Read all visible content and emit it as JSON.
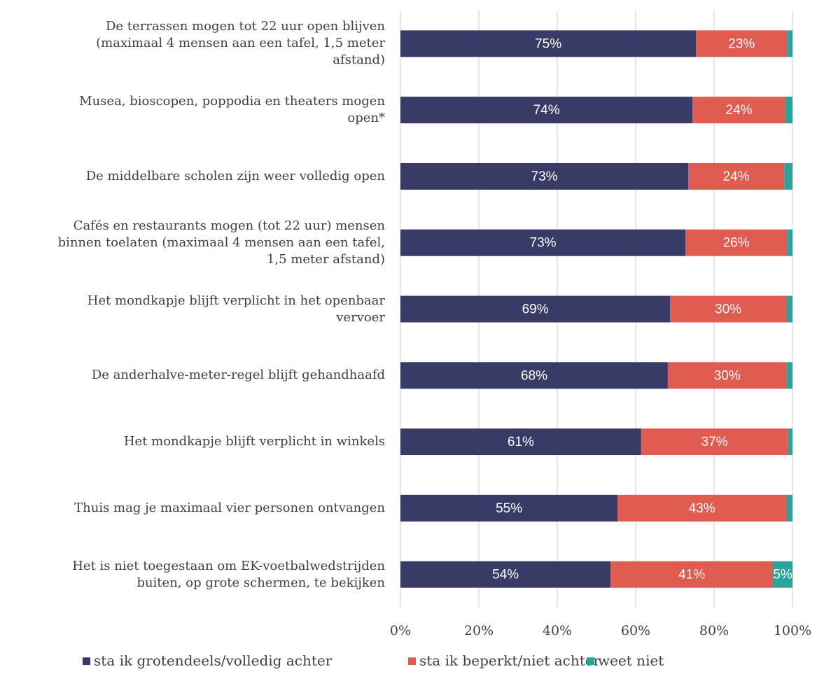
{
  "chart_data": {
    "type": "stacked-bar-horizontal",
    "categories": [
      "De terrassen mogen tot 22 uur open blijven\n(maximaal 4 mensen aan een tafel, 1,5 meter\nafstand)",
      "Musea, bioscopen, poppodia en theaters mogen\nopen*",
      "De middelbare scholen zijn weer volledig open",
      "Cafés en restaurants mogen (tot 22 uur) mensen\nbinnen toelaten (maximaal 4 mensen aan een tafel,\n1,5 meter afstand)",
      "Het mondkapje blijft verplicht in het openbaar\nvervoer",
      "De anderhalve-meter-regel blijft gehandhaafd",
      "Het mondkapje blijft verplicht in winkels",
      "Thuis mag je maximaal vier personen ontvangen",
      "Het is niet toegestaan om EK-voetbalwedstrijden\nbuiten, op grote schermen, te bekijken"
    ],
    "series": [
      {
        "name": "sta ik grotendeels/volledig achter",
        "color": "#383b66",
        "values": [
          75.4,
          74.5,
          73.4,
          72.7,
          68.8,
          68.2,
          61.4,
          55.4,
          53.6
        ],
        "value_labels": [
          "75%",
          "74%",
          "73%",
          "73%",
          "69%",
          "68%",
          "61%",
          "55%",
          "54%"
        ]
      },
      {
        "name": "sta ik beperkt/niet achter",
        "color": "#e05b50",
        "values": [
          23.2,
          23.7,
          24.5,
          25.9,
          29.6,
          30.3,
          37.4,
          43.0,
          41.4
        ],
        "value_labels": [
          "23%",
          "24%",
          "24%",
          "26%",
          "30%",
          "30%",
          "37%",
          "43%",
          "41%"
        ]
      },
      {
        "name": "weet niet",
        "color": "#2aa39a",
        "values": [
          1.4,
          1.8,
          2.1,
          1.4,
          1.6,
          1.5,
          1.2,
          1.6,
          5.0
        ],
        "value_labels": [
          null,
          null,
          null,
          null,
          null,
          null,
          null,
          null,
          "5%"
        ]
      }
    ],
    "xlim": [
      0,
      100
    ],
    "xticks": [
      {
        "value": 0,
        "label": "0%"
      },
      {
        "value": 20,
        "label": "20%"
      },
      {
        "value": 40,
        "label": "40%"
      },
      {
        "value": 60,
        "label": "60%"
      },
      {
        "value": 80,
        "label": "80%"
      },
      {
        "value": 100,
        "label": "100%"
      }
    ],
    "grid": true,
    "legend": "bottom"
  }
}
